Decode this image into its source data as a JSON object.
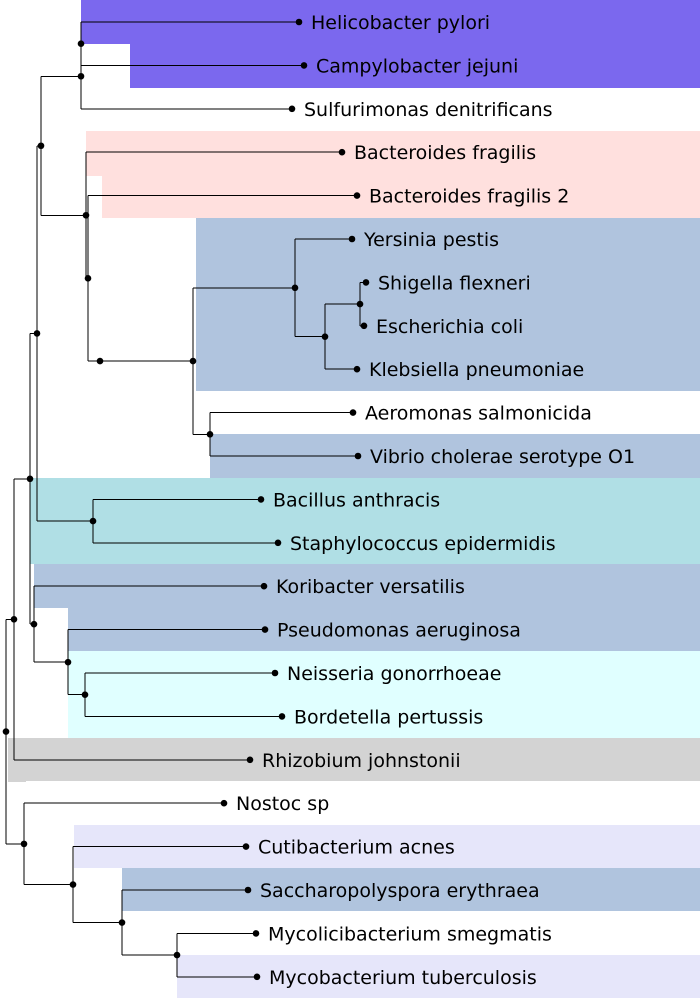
{
  "tree": {
    "taxa": [
      "Helicobacter pylori",
      "Campylobacter jejuni",
      "Sulfurimonas denitrificans",
      "Bacteroides fragilis",
      "Bacteroides fragilis 2",
      "Yersinia pestis",
      "Shigella flexneri",
      "Escherichia coli",
      "Klebsiella pneumoniae",
      "Aeromonas salmonicida",
      "Vibrio cholerae serotype O1",
      "Bacillus anthracis",
      "Staphylococcus epidermidis",
      "Koribacter versatilis",
      "Pseudomonas aeruginosa",
      "Neisseria gonorrhoeae",
      "Bordetella pertussis",
      "Rhizobium johnstonii",
      "Nostoc sp",
      "Cutibacterium acnes",
      "Saccharopolyspora erythraea",
      "Mycolicibacterium smegmatis",
      "Mycobacterium tuberculosis"
    ],
    "clade_colors": {
      "epsilon": "#7b68ee",
      "bacteroides": "#ffe0de",
      "gamma": "#b0c4de",
      "firmicutes": "#b0dfe5",
      "acidobacteria_pseudomonas": "#b0c4de",
      "beta": "#e0ffff",
      "alpha": "#d3d3d3",
      "actinobacteria_light": "#e6e6fa",
      "actinobacteria_steel": "#b0c4de"
    }
  }
}
